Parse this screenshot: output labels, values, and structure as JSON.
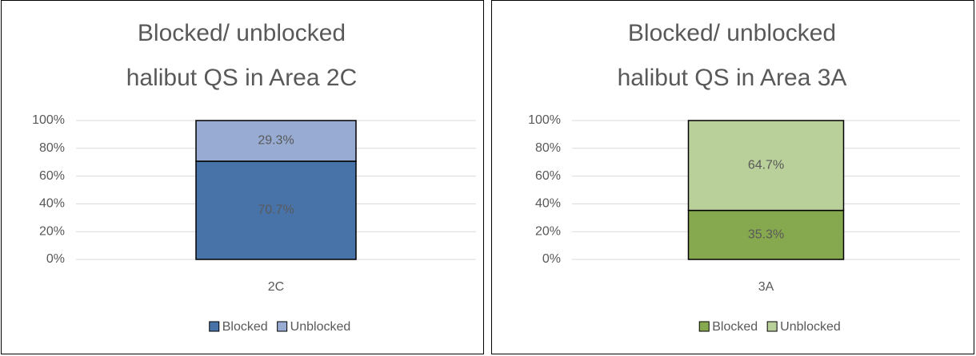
{
  "chart_data": [
    {
      "type": "stacked_bar",
      "title": "Blocked/ unblocked halibut QS in Area 2C",
      "categories": [
        "2C"
      ],
      "series": [
        {
          "name": "Blocked",
          "color": "#4873a8",
          "values": [
            70.7
          ],
          "value_labels": [
            "70.7%"
          ]
        },
        {
          "name": "Unblocked",
          "color": "#97abd3",
          "values": [
            29.3
          ],
          "value_labels": [
            "29.3%"
          ]
        }
      ],
      "ylim": [
        0,
        100
      ],
      "yticks": [
        {
          "value": 0,
          "label": "0%"
        },
        {
          "value": 20,
          "label": "20%"
        },
        {
          "value": 40,
          "label": "40%"
        },
        {
          "value": 60,
          "label": "60%"
        },
        {
          "value": 80,
          "label": "80%"
        },
        {
          "value": 100,
          "label": "100%"
        }
      ],
      "grid": true,
      "legend": "bottom"
    },
    {
      "type": "stacked_bar",
      "title": "Blocked/ unblocked halibut QS in Area 3A",
      "categories": [
        "3A"
      ],
      "series": [
        {
          "name": "Blocked",
          "color": "#86a84e",
          "values": [
            35.3
          ],
          "value_labels": [
            "35.3%"
          ]
        },
        {
          "name": "Unblocked",
          "color": "#bad09a",
          "values": [
            64.7
          ],
          "value_labels": [
            "64.7%"
          ]
        }
      ],
      "ylim": [
        0,
        100
      ],
      "yticks": [
        {
          "value": 0,
          "label": "0%"
        },
        {
          "value": 20,
          "label": "20%"
        },
        {
          "value": 40,
          "label": "40%"
        },
        {
          "value": 60,
          "label": "60%"
        },
        {
          "value": 80,
          "label": "80%"
        },
        {
          "value": 100,
          "label": "100%"
        }
      ],
      "grid": true,
      "legend": "bottom"
    }
  ]
}
